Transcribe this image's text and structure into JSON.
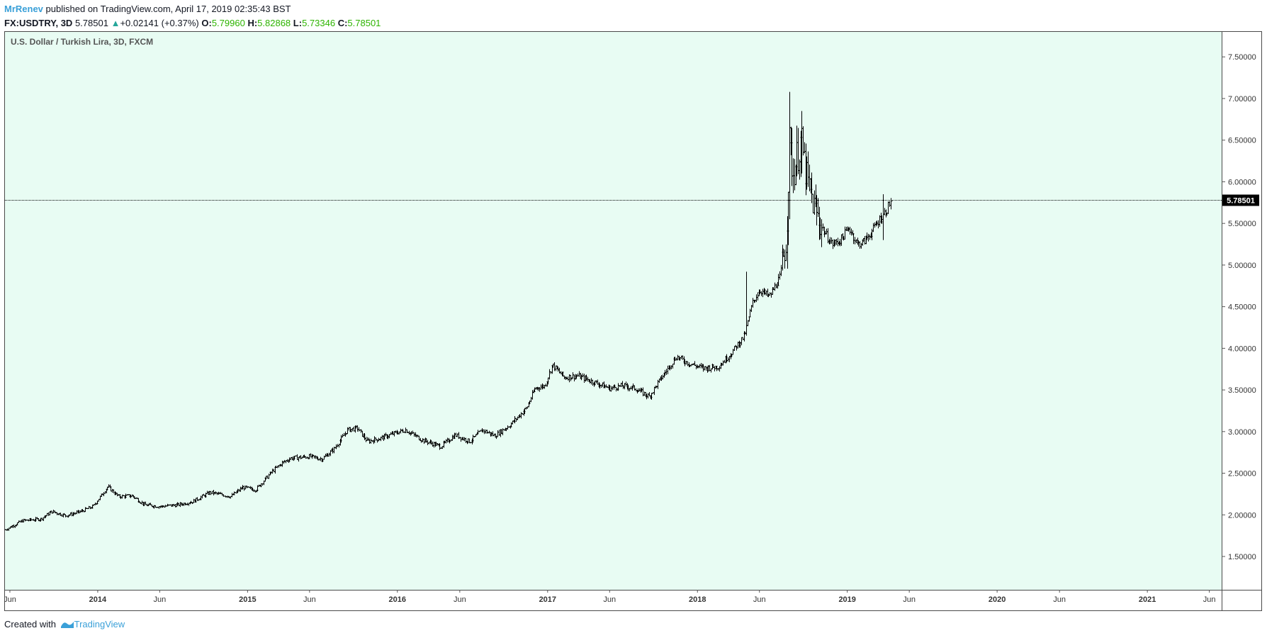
{
  "header": {
    "author": "MrRenev",
    "published_text": "published on TradingView.com, April 17, 2019 02:35:43 BST",
    "symbol": "FX:USDTRY, 3D",
    "last_price": "5.78501",
    "change": "+0.02141 (+0.37%)",
    "o_label": "O:",
    "open": "5.79960",
    "h_label": "H:",
    "high": "5.82868",
    "l_label": "L:",
    "low": "5.73346",
    "c_label": "C:",
    "close": "5.78501",
    "up_color": "#26a69a",
    "ohlc_color": "#2db400"
  },
  "footer": {
    "created_with": "Created with",
    "brand": "TradingView"
  },
  "chart_data": {
    "type": "ohlc",
    "title": "U.S. Dollar / Turkish Lira, 3D, FXCM",
    "background": "#e8fcf3",
    "bar_color": "#000000",
    "y_ticks": [
      "1.50000",
      "2.00000",
      "2.50000",
      "3.00000",
      "3.50000",
      "4.00000",
      "4.50000",
      "5.00000",
      "5.50000",
      "6.00000",
      "6.50000",
      "7.00000",
      "7.50000"
    ],
    "ylim": [
      1.1,
      7.8
    ],
    "x_ticks": [
      {
        "label": "Jun",
        "date": "2013-06-01",
        "bold": false
      },
      {
        "label": "2014",
        "date": "2014-01-01",
        "bold": true
      },
      {
        "label": "Jun",
        "date": "2014-06-01",
        "bold": false
      },
      {
        "label": "2015",
        "date": "2015-01-01",
        "bold": true
      },
      {
        "label": "Jun",
        "date": "2015-06-01",
        "bold": false
      },
      {
        "label": "2016",
        "date": "2016-01-01",
        "bold": true
      },
      {
        "label": "Jun",
        "date": "2016-06-01",
        "bold": false
      },
      {
        "label": "2017",
        "date": "2017-01-01",
        "bold": true
      },
      {
        "label": "Jun",
        "date": "2017-06-01",
        "bold": false
      },
      {
        "label": "2018",
        "date": "2018-01-01",
        "bold": true
      },
      {
        "label": "Jun",
        "date": "2018-06-01",
        "bold": false
      },
      {
        "label": "2019",
        "date": "2019-01-01",
        "bold": true
      },
      {
        "label": "Jun",
        "date": "2019-06-01",
        "bold": false
      },
      {
        "label": "2020",
        "date": "2020-01-01",
        "bold": true
      },
      {
        "label": "Jun",
        "date": "2020-06-01",
        "bold": false
      },
      {
        "label": "2021",
        "date": "2021-01-01",
        "bold": true
      },
      {
        "label": "Jun",
        "date": "2021-06-01",
        "bold": false
      }
    ],
    "x_range": [
      "2013-05-20",
      "2021-07-01"
    ],
    "last_price": {
      "value": 5.78501,
      "label": "5.78501"
    },
    "bar_interval_days": 3,
    "series": [
      {
        "date": "2013-05-20",
        "value": 1.82
      },
      {
        "date": "2013-07-01",
        "value": 1.93
      },
      {
        "date": "2013-08-15",
        "value": 1.95
      },
      {
        "date": "2013-09-10",
        "value": 2.04
      },
      {
        "date": "2013-10-15",
        "value": 1.99
      },
      {
        "date": "2013-11-20",
        "value": 2.04
      },
      {
        "date": "2013-12-20",
        "value": 2.1
      },
      {
        "date": "2014-01-25",
        "value": 2.34
      },
      {
        "date": "2014-02-20",
        "value": 2.22
      },
      {
        "date": "2014-03-25",
        "value": 2.23
      },
      {
        "date": "2014-04-25",
        "value": 2.12
      },
      {
        "date": "2014-06-01",
        "value": 2.1
      },
      {
        "date": "2014-07-15",
        "value": 2.12
      },
      {
        "date": "2014-08-20",
        "value": 2.16
      },
      {
        "date": "2014-10-01",
        "value": 2.27
      },
      {
        "date": "2014-11-20",
        "value": 2.22
      },
      {
        "date": "2014-12-20",
        "value": 2.33
      },
      {
        "date": "2015-01-20",
        "value": 2.3
      },
      {
        "date": "2015-03-01",
        "value": 2.52
      },
      {
        "date": "2015-03-25",
        "value": 2.62
      },
      {
        "date": "2015-04-15",
        "value": 2.68
      },
      {
        "date": "2015-06-01",
        "value": 2.7
      },
      {
        "date": "2015-07-01",
        "value": 2.67
      },
      {
        "date": "2015-08-01",
        "value": 2.8
      },
      {
        "date": "2015-09-01",
        "value": 3.02
      },
      {
        "date": "2015-09-25",
        "value": 3.04
      },
      {
        "date": "2015-10-20",
        "value": 2.88
      },
      {
        "date": "2015-11-20",
        "value": 2.92
      },
      {
        "date": "2015-12-25",
        "value": 2.98
      },
      {
        "date": "2016-01-20",
        "value": 3.02
      },
      {
        "date": "2016-03-01",
        "value": 2.9
      },
      {
        "date": "2016-04-15",
        "value": 2.82
      },
      {
        "date": "2016-05-20",
        "value": 2.96
      },
      {
        "date": "2016-06-25",
        "value": 2.88
      },
      {
        "date": "2016-07-25",
        "value": 3.02
      },
      {
        "date": "2016-08-25",
        "value": 2.95
      },
      {
        "date": "2016-10-01",
        "value": 3.08
      },
      {
        "date": "2016-11-10",
        "value": 3.28
      },
      {
        "date": "2016-12-01",
        "value": 3.52
      },
      {
        "date": "2016-12-25",
        "value": 3.55
      },
      {
        "date": "2017-01-12",
        "value": 3.8
      },
      {
        "date": "2017-02-10",
        "value": 3.65
      },
      {
        "date": "2017-03-15",
        "value": 3.67
      },
      {
        "date": "2017-04-20",
        "value": 3.6
      },
      {
        "date": "2017-06-01",
        "value": 3.52
      },
      {
        "date": "2017-07-01",
        "value": 3.55
      },
      {
        "date": "2017-08-01",
        "value": 3.52
      },
      {
        "date": "2017-09-05",
        "value": 3.42
      },
      {
        "date": "2017-10-01",
        "value": 3.62
      },
      {
        "date": "2017-11-10",
        "value": 3.9
      },
      {
        "date": "2017-12-10",
        "value": 3.82
      },
      {
        "date": "2018-01-15",
        "value": 3.76
      },
      {
        "date": "2018-02-20",
        "value": 3.78
      },
      {
        "date": "2018-03-20",
        "value": 3.92
      },
      {
        "date": "2018-04-25",
        "value": 4.15
      },
      {
        "date": "2018-05-15",
        "value": 4.55
      },
      {
        "date": "2018-06-01",
        "value": 4.7
      },
      {
        "date": "2018-06-25",
        "value": 4.62
      },
      {
        "date": "2018-07-20",
        "value": 4.85
      },
      {
        "date": "2018-08-05",
        "value": 5.3
      },
      {
        "date": "2018-08-13",
        "value": 6.45
      },
      {
        "date": "2018-08-22",
        "value": 6.1
      },
      {
        "date": "2018-09-10",
        "value": 6.5
      },
      {
        "date": "2018-09-25",
        "value": 6.0
      },
      {
        "date": "2018-10-15",
        "value": 5.65
      },
      {
        "date": "2018-11-05",
        "value": 5.4
      },
      {
        "date": "2018-11-25",
        "value": 5.25
      },
      {
        "date": "2018-12-15",
        "value": 5.3
      },
      {
        "date": "2019-01-05",
        "value": 5.45
      },
      {
        "date": "2019-01-25",
        "value": 5.25
      },
      {
        "date": "2019-02-10",
        "value": 5.28
      },
      {
        "date": "2019-03-01",
        "value": 5.4
      },
      {
        "date": "2019-03-20",
        "value": 5.55
      },
      {
        "date": "2019-04-05",
        "value": 5.65
      },
      {
        "date": "2019-04-17",
        "value": 5.785
      }
    ],
    "spikes": [
      {
        "date": "2018-08-13",
        "high": 7.08,
        "low": 5.55
      },
      {
        "date": "2018-09-12",
        "high": 6.85,
        "low": 6.1
      },
      {
        "date": "2018-04-30",
        "high": 4.92,
        "low": 4.35
      },
      {
        "date": "2019-03-28",
        "high": 5.85,
        "low": 5.3
      }
    ]
  }
}
